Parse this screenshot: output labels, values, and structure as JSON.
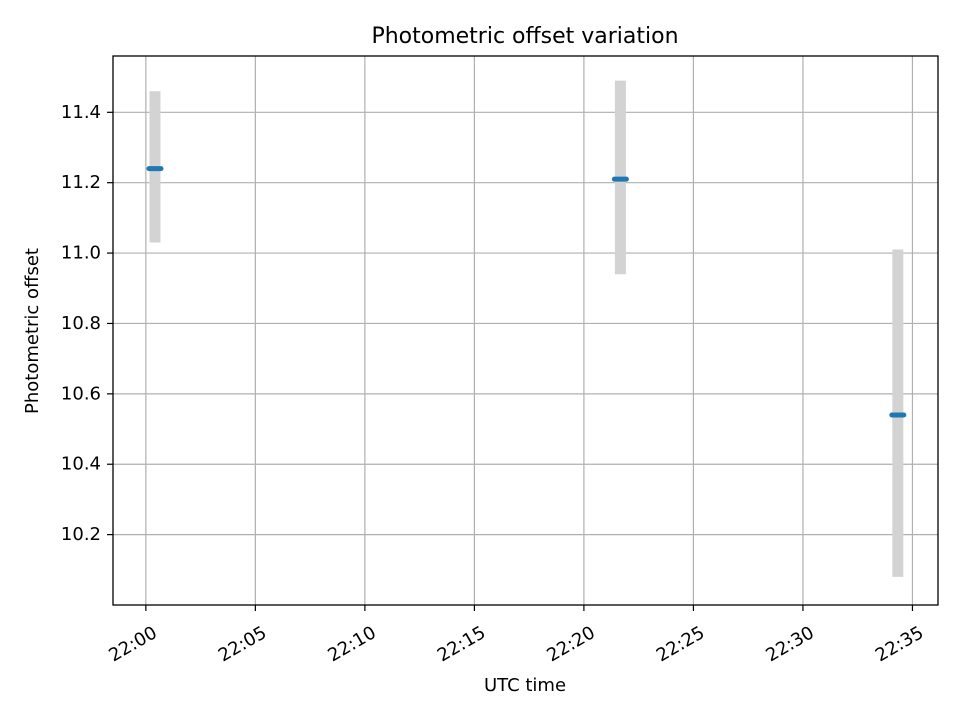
{
  "chart_data": {
    "type": "scatter",
    "title": "Photometric offset variation",
    "xlabel": "UTC time",
    "ylabel": "Photometric offset",
    "grid": true,
    "xlim": [
      "21:58:30",
      "22:36:10"
    ],
    "ylim": [
      10.0,
      11.56
    ],
    "x_ticks": [
      "22:00",
      "22:05",
      "22:10",
      "22:15",
      "22:20",
      "22:25",
      "22:30",
      "22:35"
    ],
    "y_ticks": [
      10.2,
      10.4,
      10.6,
      10.8,
      11.0,
      11.2,
      11.4
    ],
    "points": [
      {
        "x": "22:00:25",
        "y": 11.24,
        "y_low": 11.03,
        "y_high": 11.46
      },
      {
        "x": "22:21:40",
        "y": 11.21,
        "y_low": 10.94,
        "y_high": 11.49
      },
      {
        "x": "22:34:20",
        "y": 10.54,
        "y_low": 10.08,
        "y_high": 11.01
      }
    ],
    "colors": {
      "point": "#1f77b4",
      "errorbar": "#d3d3d3",
      "grid": "#b0b0b0"
    }
  }
}
